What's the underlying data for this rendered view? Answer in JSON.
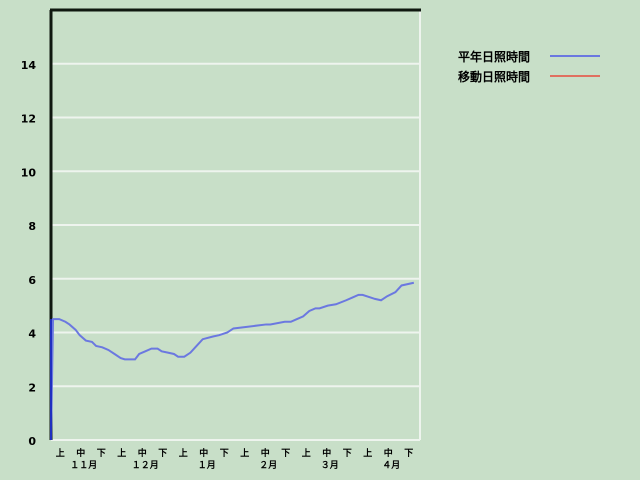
{
  "chart_data": {
    "type": "line",
    "title": "",
    "xlabel": "",
    "ylabel": "",
    "ylim": [
      0,
      16
    ],
    "yticks": [
      0,
      2,
      4,
      6,
      8,
      10,
      12,
      14
    ],
    "grid": true,
    "legend_position": "top-right",
    "x_unit": "dekad index (0 = 11月上)",
    "xlim": [
      0,
      18
    ],
    "x_ticks": [
      "上",
      "中",
      "下",
      "上",
      "中",
      "下",
      "上",
      "中",
      "下",
      "上",
      "中",
      "下",
      "上",
      "中",
      "下",
      "上",
      "中",
      "下"
    ],
    "month_labels": [
      "１１月",
      "１２月",
      "１月",
      "２月",
      "３月",
      "４月"
    ],
    "series": [
      {
        "name": "平年日照時間",
        "color": "#6b78e0",
        "x": [
          0,
          0.1,
          0.4,
          0.7,
          0.9,
          1.2,
          1.4,
          1.7,
          2.0,
          2.2,
          2.5,
          2.8,
          3.1,
          3.4,
          3.6,
          4.1,
          4.3,
          4.6,
          4.9,
          5.2,
          5.4,
          5.7,
          6.0,
          6.2,
          6.5,
          6.8,
          7.1,
          7.4,
          7.9,
          8.2,
          8.6,
          8.9,
          10.5,
          10.7,
          11.4,
          11.7,
          12.0,
          12.3,
          12.6,
          12.9,
          13.1,
          13.5,
          13.9,
          14.4,
          14.7,
          15.0,
          15.2,
          15.6,
          15.8,
          16.1,
          16.4,
          16.8,
          17.1,
          17.7
        ],
        "y": [
          0,
          4.5,
          4.5,
          4.4,
          4.3,
          4.1,
          3.9,
          3.7,
          3.65,
          3.5,
          3.45,
          3.35,
          3.2,
          3.05,
          3.0,
          3.0,
          3.2,
          3.3,
          3.4,
          3.4,
          3.3,
          3.25,
          3.2,
          3.1,
          3.1,
          3.25,
          3.5,
          3.75,
          3.85,
          3.9,
          4.0,
          4.15,
          4.3,
          4.3,
          4.4,
          4.4,
          4.5,
          4.6,
          4.8,
          4.9,
          4.9,
          5.0,
          5.05,
          5.2,
          5.3,
          5.4,
          5.4,
          5.3,
          5.25,
          5.2,
          5.35,
          5.5,
          5.75,
          5.85
        ]
      },
      {
        "name": "移動日照時間",
        "color": "#e07060",
        "x": [],
        "y": []
      }
    ]
  }
}
